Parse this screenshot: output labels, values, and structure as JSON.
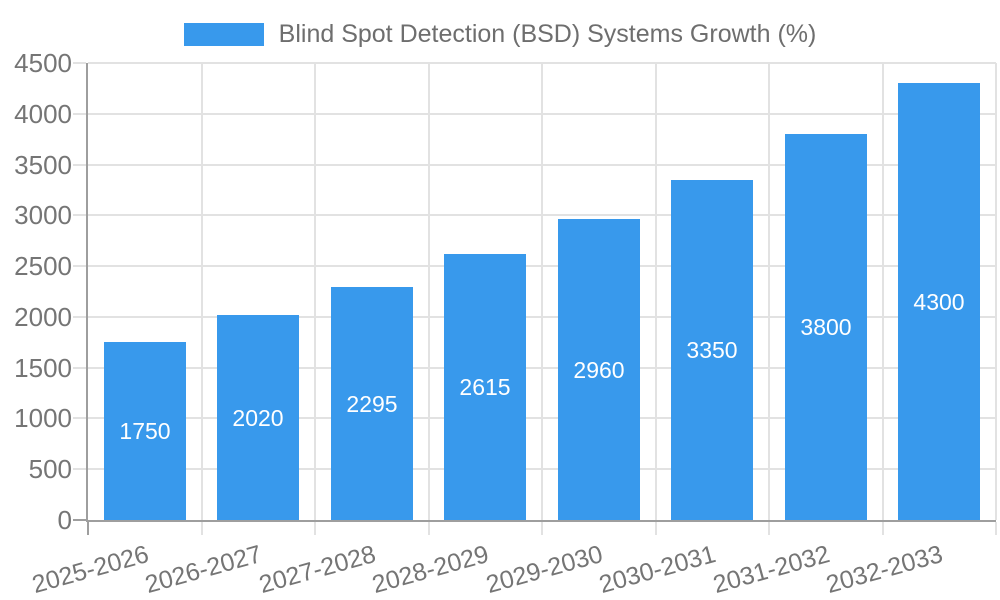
{
  "legend": {
    "series_label": "Blind Spot Detection (BSD) Systems Growth (%)"
  },
  "chart_data": {
    "type": "bar",
    "title": "Blind Spot Detection (BSD) Systems Growth (%)",
    "categories": [
      "2025-2026",
      "2026-2027",
      "2027-2028",
      "2028-2029",
      "2029-2030",
      "2030-2031",
      "2031-2032",
      "2032-2033"
    ],
    "values": [
      1750,
      2020,
      2295,
      2615,
      2960,
      3350,
      3800,
      4300
    ],
    "value_labels": [
      "1750",
      "2020",
      "2295",
      "2615",
      "2960",
      "3350",
      "3800",
      "4300"
    ],
    "xlabel": "",
    "ylabel": "",
    "ylim": [
      0,
      4500
    ],
    "ytick_step": 500,
    "grid": true,
    "legend_position": "top-center",
    "value_labels_position": "center-of-bar",
    "x_label_rotation_deg": -15.5,
    "colors": {
      "bar": "#3899EC",
      "grid": "#E2E2E2",
      "axis": "#9E9E9E",
      "tick_text": "#757575",
      "legend_text": "#6E6E6E",
      "bar_label_text": "#FFFFFF",
      "background": "#FFFFFF"
    }
  }
}
